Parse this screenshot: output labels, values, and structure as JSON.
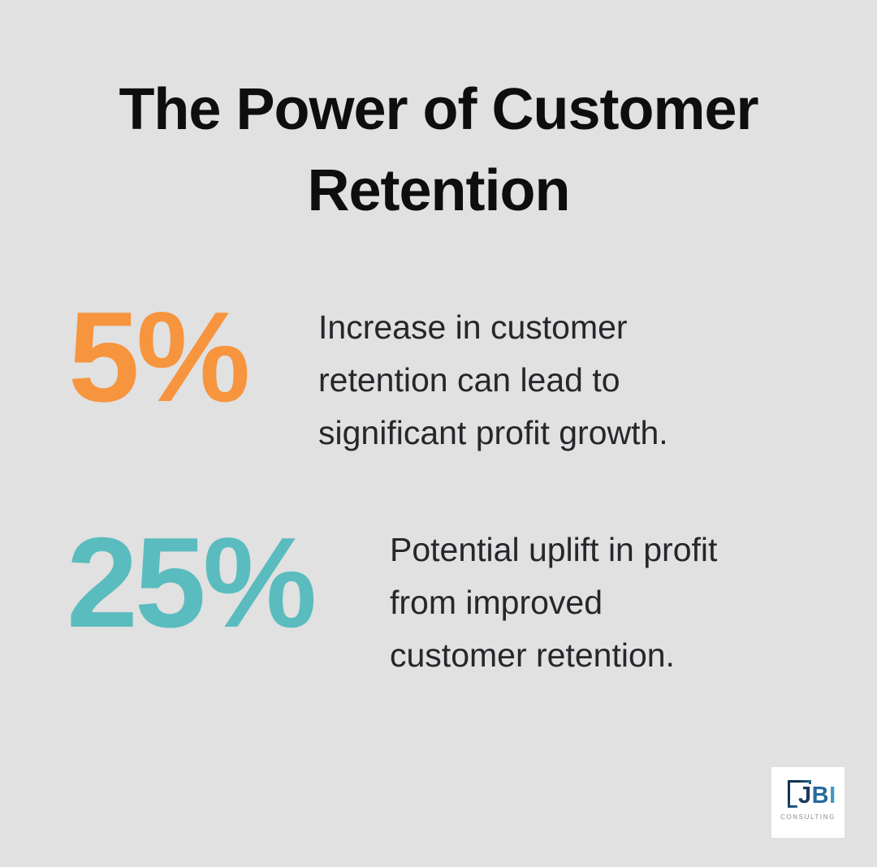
{
  "title": "The Power of Customer Retention",
  "stats": [
    {
      "value": "5%",
      "description": "Increase in customer retention can lead to significant profit growth.",
      "lines": [
        "Increase in customer",
        "retention can lead to",
        "significant profit growth."
      ],
      "color": "#f7943e"
    },
    {
      "value": "25%",
      "description": "Potential uplift in profit from improved customer retention.",
      "lines": [
        "Potential uplift in profit",
        "from improved",
        "customer retention."
      ],
      "color": "#5abcbe"
    }
  ],
  "logo": {
    "name": "JBI Consulting",
    "letters": [
      "J",
      "B",
      "I"
    ],
    "subtitle": "CONSULTING"
  },
  "colors": {
    "background": "#e0e1e0",
    "accent_orange": "#f7943e",
    "accent_teal": "#5abcbe",
    "title_text": "#0e0e0e",
    "body_text": "#26262b",
    "logo_navy": "#1c3a5e",
    "logo_blue": "#2f96cf",
    "logo_subtitle_gray": "#8b8b8b"
  },
  "chart_data": {
    "type": "table",
    "title": "The Power of Customer Retention",
    "rows": [
      {
        "value": 5,
        "unit": "%",
        "display": "5%",
        "label": "Increase in customer retention can lead to significant profit growth."
      },
      {
        "value": 25,
        "unit": "%",
        "display": "25%",
        "label": "Potential uplift in profit from improved customer retention."
      }
    ],
    "legend_position": "none",
    "grid": false
  }
}
